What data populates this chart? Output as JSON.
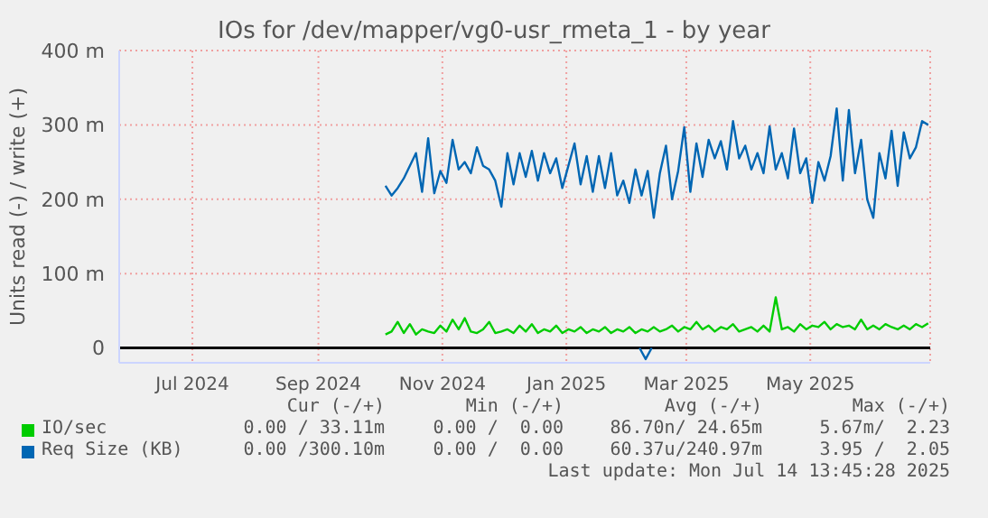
{
  "chart_data": {
    "type": "line",
    "title": "IOs for /dev/mapper/vg0-usr_rmeta_1 - by year",
    "ylabel": "Units read (-) / write (+)",
    "x": [
      "2024-10-19",
      "2024-10-22",
      "2024-10-25",
      "2024-10-28",
      "2024-10-31",
      "2024-11-03",
      "2024-11-06",
      "2024-11-09",
      "2024-11-12",
      "2024-11-15",
      "2024-11-18",
      "2024-11-21",
      "2024-11-24",
      "2024-11-27",
      "2024-11-30",
      "2024-12-03",
      "2024-12-06",
      "2024-12-09",
      "2024-12-12",
      "2024-12-15",
      "2024-12-18",
      "2024-12-21",
      "2024-12-24",
      "2024-12-27",
      "2024-12-30",
      "2025-01-02",
      "2025-01-05",
      "2025-01-08",
      "2025-01-11",
      "2025-01-14",
      "2025-01-17",
      "2025-01-20",
      "2025-01-23",
      "2025-01-26",
      "2025-01-29",
      "2025-02-01",
      "2025-02-04",
      "2025-02-07",
      "2025-02-10",
      "2025-02-13",
      "2025-02-16",
      "2025-02-19",
      "2025-02-22",
      "2025-02-25",
      "2025-02-28",
      "2025-03-03",
      "2025-03-06",
      "2025-03-09",
      "2025-03-12",
      "2025-03-15",
      "2025-03-18",
      "2025-03-21",
      "2025-03-24",
      "2025-03-27",
      "2025-03-30",
      "2025-04-02",
      "2025-04-05",
      "2025-04-08",
      "2025-04-11",
      "2025-04-14",
      "2025-04-17",
      "2025-04-20",
      "2025-04-23",
      "2025-04-26",
      "2025-04-29",
      "2025-05-02",
      "2025-05-05",
      "2025-05-08",
      "2025-05-11",
      "2025-05-14",
      "2025-05-17",
      "2025-05-20",
      "2025-05-23",
      "2025-05-26",
      "2025-05-29",
      "2025-06-01",
      "2025-06-04",
      "2025-06-07",
      "2025-06-10",
      "2025-06-13",
      "2025-06-16",
      "2025-06-19",
      "2025-06-22",
      "2025-06-25",
      "2025-06-28",
      "2025-07-01",
      "2025-07-04",
      "2025-07-07",
      "2025-07-10",
      "2025-07-13"
    ],
    "series": [
      {
        "name": "IO/sec",
        "color": "#00cc00",
        "values": [
          18,
          22,
          35,
          20,
          32,
          18,
          25,
          22,
          20,
          30,
          22,
          38,
          25,
          40,
          22,
          20,
          25,
          35,
          20,
          22,
          25,
          20,
          30,
          22,
          32,
          20,
          25,
          22,
          30,
          20,
          25,
          22,
          28,
          20,
          25,
          22,
          28,
          20,
          25,
          22,
          28,
          20,
          25,
          22,
          28,
          22,
          25,
          30,
          22,
          28,
          25,
          35,
          25,
          30,
          22,
          28,
          25,
          32,
          22,
          25,
          28,
          22,
          30,
          22,
          68,
          25,
          28,
          22,
          32,
          25,
          30,
          28,
          35,
          25,
          32,
          28,
          30,
          25,
          38,
          25,
          30,
          25,
          32,
          28,
          25,
          30,
          25,
          32,
          28,
          33
        ]
      },
      {
        "name": "Req Size (KB)",
        "color": "#0066b3",
        "values": [
          218,
          205,
          215,
          228,
          245,
          262,
          210,
          282,
          208,
          238,
          222,
          280,
          240,
          250,
          235,
          270,
          245,
          240,
          225,
          190,
          262,
          220,
          262,
          230,
          265,
          225,
          262,
          235,
          255,
          215,
          245,
          275,
          220,
          258,
          210,
          258,
          215,
          262,
          205,
          225,
          195,
          240,
          205,
          238,
          175,
          235,
          272,
          200,
          238,
          297,
          210,
          275,
          230,
          280,
          255,
          278,
          240,
          305,
          255,
          272,
          240,
          262,
          235,
          298,
          240,
          262,
          228,
          295,
          235,
          255,
          195,
          250,
          225,
          258,
          322,
          225,
          320,
          235,
          280,
          200,
          175,
          262,
          228,
          292,
          218,
          290,
          255,
          270,
          305,
          300
        ]
      },
      {
        "color": "#0066b3",
        "x": [
          "2025-02-21",
          "2025-02-24",
          "2025-02-27"
        ],
        "values": [
          0,
          -15,
          0
        ]
      }
    ],
    "xlim": [
      "2024-06-10",
      "2025-07-14"
    ],
    "xticks": [
      {
        "value": "2024-07-16",
        "label": "Jul 2024"
      },
      {
        "value": "2024-09-16",
        "label": "Sep 2024"
      },
      {
        "value": "2024-11-16",
        "label": "Nov 2024"
      },
      {
        "value": "2025-01-16",
        "label": "Jan 2025"
      },
      {
        "value": "2025-03-16",
        "label": "Mar 2025"
      },
      {
        "value": "2025-05-16",
        "label": "May 2025"
      }
    ],
    "ylim": [
      -20,
      400
    ],
    "yticks": [
      0,
      {
        "value": 100,
        "label": "100 m"
      },
      {
        "value": 200,
        "label": "200 m"
      },
      {
        "value": 300,
        "label": "300 m"
      },
      {
        "value": 400,
        "label": "400 m"
      }
    ],
    "ref_lines": [
      {
        "axis": "y",
        "value": 0,
        "color": "#000000"
      }
    ],
    "grid": true,
    "legend": "bottom",
    "marker": "none",
    "line_style": "solid",
    "annotations": [
      "Cur (-/+)",
      "Min (-/+)",
      "Avg (-/+)",
      "Max (-/+)",
      "0.00 / 33.11m",
      "0.00 /  0.00",
      "86.70n/ 24.65m",
      "5.67m/  2.23",
      "0.00 /300.10m",
      "0.00 /  0.00",
      "60.37u/240.97m",
      "3.95 /  2.05",
      "Last update: Mon Jul 14 13:45:28 2025"
    ]
  }
}
